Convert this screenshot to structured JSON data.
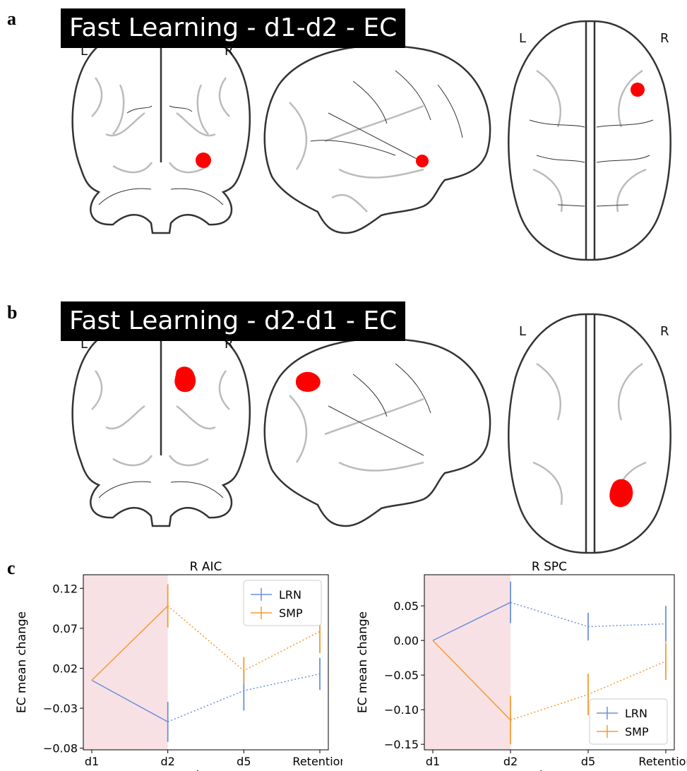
{
  "panels": {
    "a": {
      "letter": "a",
      "title": "Fast Learning - d1-d2 - EC",
      "coronal": {
        "left": "L",
        "right": "R"
      },
      "axial": {
        "left": "L",
        "right": "R"
      }
    },
    "b": {
      "letter": "b",
      "title": "Fast Learning - d2-d1 - EC",
      "coronal": {
        "left": "L",
        "right": "R"
      },
      "axial": {
        "left": "L",
        "right": "R"
      }
    },
    "c": {
      "letter": "c"
    }
  },
  "colors": {
    "LRN": "#6b8fdc",
    "SMP": "#f39b2f",
    "shade": "#f8e1e4",
    "blob": "#ff0000"
  },
  "chart_data": [
    {
      "type": "line",
      "title": "R AIC",
      "xlabel": "days",
      "ylabel": "EC mean change",
      "categories": [
        "d1",
        "d2",
        "d5",
        "Retention"
      ],
      "yticks": [
        0.12,
        0.07,
        0.02,
        -0.03,
        -0.08
      ],
      "ytick_labels": [
        "0.12",
        "0.07",
        "0.02",
        "−0.03",
        "−0.08"
      ],
      "ylim": [
        -0.082,
        0.137
      ],
      "shaded_range": [
        "d1",
        "d2"
      ],
      "legend_position": "top-right",
      "series": [
        {
          "name": "LRN",
          "values": [
            0.005,
            -0.047,
            -0.008,
            0.013
          ],
          "err": [
            0,
            0.025,
            0.025,
            0.02
          ]
        },
        {
          "name": "SMP",
          "values": [
            0.005,
            0.098,
            0.017,
            0.066
          ],
          "err": [
            0,
            0.027,
            0.017,
            0.027
          ]
        }
      ]
    },
    {
      "type": "line",
      "title": "R SPC",
      "xlabel": "days",
      "ylabel": "EC mean change",
      "categories": [
        "d1",
        "d2",
        "d5",
        "Retention"
      ],
      "yticks": [
        0.05,
        0.0,
        -0.05,
        -0.1,
        -0.15
      ],
      "ytick_labels": [
        "0.05",
        "0.00",
        "−0.05",
        "−0.10",
        "−0.15"
      ],
      "ylim": [
        -0.158,
        0.095
      ],
      "shaded_range": [
        "d1",
        "d2"
      ],
      "legend_position": "bottom-right",
      "series": [
        {
          "name": "LRN",
          "values": [
            0.0,
            0.055,
            0.02,
            0.024
          ],
          "err": [
            0,
            0.03,
            0.02,
            0.026
          ]
        },
        {
          "name": "SMP",
          "values": [
            0.0,
            -0.115,
            -0.078,
            -0.03
          ],
          "err": [
            0,
            0.035,
            0.03,
            0.027
          ]
        }
      ]
    }
  ]
}
